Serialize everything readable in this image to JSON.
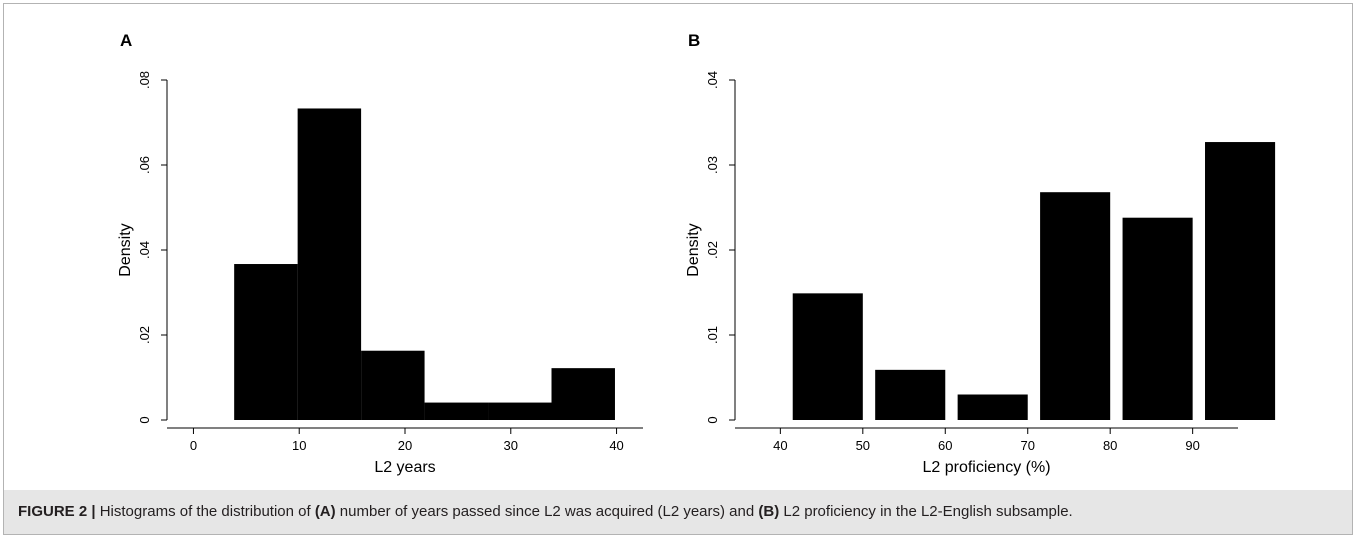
{
  "figure": {
    "caption": {
      "label": "FIGURE 2 |",
      "text_1": " Histograms of the distribution of ",
      "ref_a": "(A)",
      "text_2": " number of years passed since L2 was acquired (L2 years) and ",
      "ref_b": "(B)",
      "text_3": " L2 proficiency in the L2-English subsample."
    }
  },
  "chart_data": [
    {
      "panel": "A",
      "type": "bar",
      "xlabel": "L2 years",
      "ylabel": "Density",
      "xlim": [
        -2.5,
        42.5
      ],
      "ylim": [
        0,
        0.08
      ],
      "xticks": [
        0,
        10,
        20,
        30,
        40
      ],
      "xtick_labels": [
        "0",
        "10",
        "20",
        "30",
        "40"
      ],
      "yticks": [
        0,
        0.02,
        0.04,
        0.06,
        0.08
      ],
      "ytick_labels": [
        "0",
        ".02",
        ".04",
        ".06",
        ".08"
      ],
      "bin_width": 6,
      "bins": [
        {
          "start": 3.85,
          "value": 0.0367
        },
        {
          "start": 9.85,
          "value": 0.0733
        },
        {
          "start": 15.85,
          "value": 0.0163
        },
        {
          "start": 21.85,
          "value": 0.0041
        },
        {
          "start": 27.85,
          "value": 0.0041
        },
        {
          "start": 33.85,
          "value": 0.0122
        }
      ],
      "bar_color": "#000000",
      "grid": false
    },
    {
      "panel": "B",
      "type": "bar",
      "xlabel": "L2 proficiency (%)",
      "ylabel": "Density",
      "xlim": [
        34.5,
        95.5
      ],
      "ylim": [
        0,
        0.04
      ],
      "xticks": [
        40,
        50,
        60,
        70,
        80,
        90
      ],
      "xtick_labels": [
        "40",
        "50",
        "60",
        "70",
        "80",
        "90"
      ],
      "yticks": [
        0,
        0.01,
        0.02,
        0.03,
        0.04
      ],
      "ytick_labels": [
        "0",
        ".01",
        ".02",
        ".03",
        ".04"
      ],
      "bin_width": 8.5,
      "bins": [
        {
          "start": 41.5,
          "value": 0.0149
        },
        {
          "start": 51.5,
          "value": 0.0059
        },
        {
          "start": 61.5,
          "value": 0.003
        },
        {
          "start": 71.5,
          "value": 0.0268
        },
        {
          "start": 81.5,
          "value": 0.0238
        },
        {
          "start": 91.5,
          "value": 0.0327
        }
      ],
      "bar_color": "#000000",
      "grid": false
    }
  ]
}
